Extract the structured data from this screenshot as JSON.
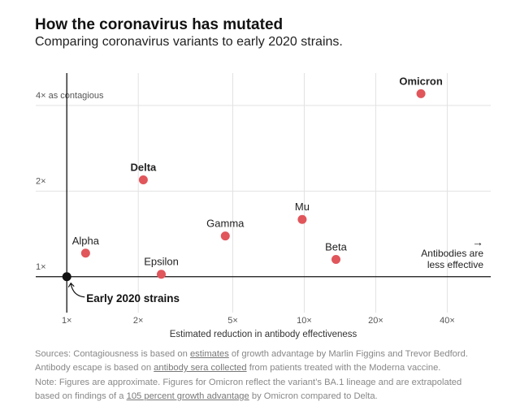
{
  "title": "How the coronavirus has mutated",
  "subtitle": "Comparing coronavirus variants to early 2020 strains.",
  "chart_data": {
    "type": "scatter",
    "xlabel": "Estimated reduction in antibody effectiveness",
    "ylabel": "",
    "x_scale": "log",
    "y_scale": "log",
    "xlim": [
      0.74,
      61
    ],
    "ylim": [
      0.7,
      5.2
    ],
    "x_ticks": [
      {
        "v": 1,
        "label": "1×"
      },
      {
        "v": 2,
        "label": "2×"
      },
      {
        "v": 5,
        "label": "5×"
      },
      {
        "v": 10,
        "label": "10×"
      },
      {
        "v": 20,
        "label": "20×"
      },
      {
        "v": 40,
        "label": "40×"
      }
    ],
    "y_ticks": [
      {
        "v": 1,
        "label": "1×"
      },
      {
        "v": 2,
        "label": "2×"
      },
      {
        "v": 4,
        "label": "4× as contagious"
      }
    ],
    "grid": true,
    "points": [
      {
        "name": "Early 2020 strains",
        "x": 1,
        "y": 1,
        "bold": true,
        "color": "#121212"
      },
      {
        "name": "Alpha",
        "x": 1.2,
        "y": 1.21,
        "bold": false,
        "color": "#e0565b"
      },
      {
        "name": "Delta",
        "x": 2.1,
        "y": 2.19,
        "bold": true,
        "color": "#e0565b"
      },
      {
        "name": "Epsilon",
        "x": 2.5,
        "y": 1.02,
        "bold": false,
        "color": "#e0565b"
      },
      {
        "name": "Gamma",
        "x": 4.65,
        "y": 1.39,
        "bold": false,
        "color": "#e0565b"
      },
      {
        "name": "Mu",
        "x": 9.8,
        "y": 1.59,
        "bold": false,
        "color": "#e0565b"
      },
      {
        "name": "Beta",
        "x": 13.6,
        "y": 1.15,
        "bold": false,
        "color": "#e0565b"
      },
      {
        "name": "Omicron",
        "x": 31,
        "y": 4.4,
        "bold": true,
        "color": "#e0565b"
      }
    ],
    "annotation": {
      "arrow": "→",
      "line1": "Antibodies are",
      "line2": "less effective"
    }
  },
  "notes": {
    "s1a": "Sources: Contagiousness is based on ",
    "s1link": "estimates",
    "s1b": " of growth advantage by Marlin Figgins and Trevor Bedford.",
    "s2a": "Antibody escape is based on ",
    "s2link": "antibody sera collected",
    "s2b": " from patients treated with the Moderna vaccine.",
    "s3": "Note: Figures are approximate. Figures for Omicron reflect the variant’s BA.1 lineage and are extrapolated",
    "s4a": "based on findings of a ",
    "s4link": "105 percent growth advantage",
    "s4b": " by Omicron compared to Delta."
  }
}
